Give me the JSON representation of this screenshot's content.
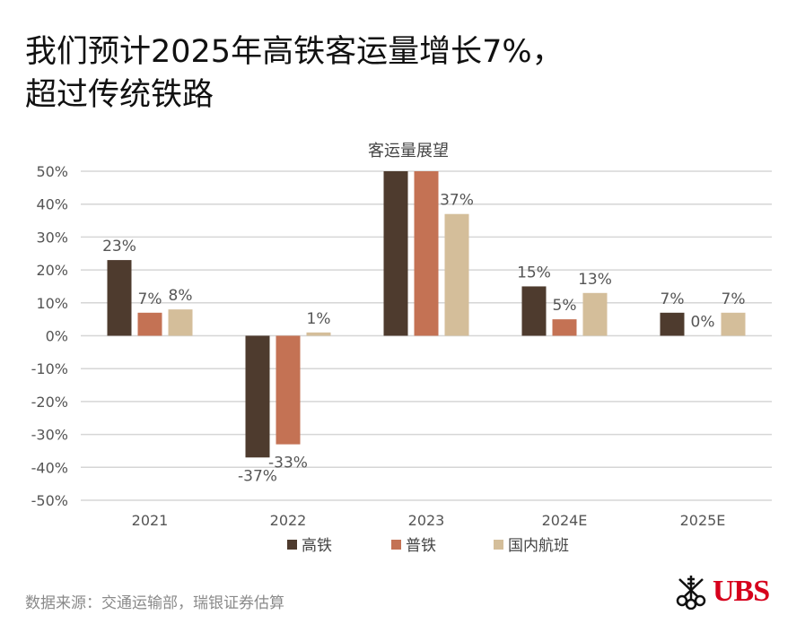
{
  "title_lines": [
    "我们预计2025年高铁客运量增长7%，",
    "超过传统铁路"
  ],
  "source": "数据来源：交通运输部，瑞银证券估算",
  "logo_text": "UBS",
  "chart_data": {
    "type": "bar",
    "title": "客运量展望",
    "categories": [
      "2021",
      "2022",
      "2023",
      "2024E",
      "2025E"
    ],
    "ylim": [
      -50,
      50
    ],
    "yticks": [
      50,
      40,
      30,
      20,
      10,
      0,
      -10,
      -20,
      -30,
      -40,
      -50
    ],
    "ytick_labels": [
      "50%",
      "40%",
      "30%",
      "20%",
      "10%",
      "0%",
      "-10%",
      "-20%",
      "-30%",
      "-40%",
      "-50%"
    ],
    "grid": true,
    "legend_position": "bottom",
    "series": [
      {
        "name": "高铁",
        "color": "#4e3b2e",
        "values": [
          23,
          -37,
          50,
          15,
          7
        ],
        "labels": [
          "23%",
          "-37%",
          "",
          "15%",
          "7%"
        ]
      },
      {
        "name": "普铁",
        "color": "#c47254",
        "values": [
          7,
          -33,
          50,
          5,
          0
        ],
        "labels": [
          "7%",
          "-33%",
          "",
          "5%",
          "0%"
        ]
      },
      {
        "name": "国内航班",
        "color": "#d4be9a",
        "values": [
          8,
          1,
          37,
          13,
          7
        ],
        "labels": [
          "8%",
          "1%",
          "37%",
          "13%",
          "7%"
        ]
      }
    ]
  }
}
